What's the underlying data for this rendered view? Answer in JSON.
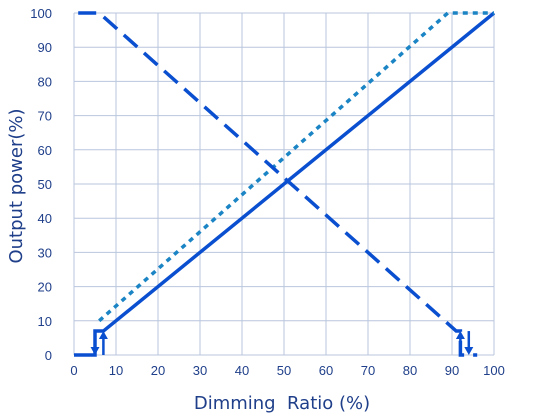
{
  "chart_data": {
    "type": "line",
    "title": "",
    "xlabel": "Dimming  Ratio (%)",
    "ylabel": "Output power(%)",
    "xlim": [
      0,
      100
    ],
    "ylim": [
      0,
      100
    ],
    "xticks": [
      0,
      10,
      20,
      30,
      40,
      50,
      60,
      70,
      80,
      90,
      100
    ],
    "yticks": [
      0,
      10,
      20,
      30,
      40,
      50,
      60,
      70,
      80,
      90,
      100
    ],
    "grid": true,
    "legend": "none",
    "colors": {
      "axis_text": "#1f3f8a",
      "grid": "#b9c6dd",
      "line": "#0a4fd0",
      "dotted": "#1a84c4"
    },
    "series": [
      {
        "style": "solid",
        "x": [
          0,
          5,
          5,
          7,
          100
        ],
        "y": [
          0,
          0,
          7,
          7,
          100
        ]
      },
      {
        "style": "dotted",
        "x": [
          6,
          89,
          97,
          100
        ],
        "y": [
          10,
          100,
          100,
          100
        ]
      },
      {
        "style": "dashed",
        "x": [
          1,
          6,
          91,
          92,
          92,
          96
        ],
        "y": [
          100,
          100,
          7,
          7,
          0,
          0
        ]
      }
    ],
    "hysteresis_arrows": [
      {
        "x": 5,
        "y_from": 7,
        "y_to": 0,
        "direction": "down"
      },
      {
        "x": 7,
        "y_from": 0,
        "y_to": 7,
        "direction": "up"
      },
      {
        "x": 92,
        "y_from": 0,
        "y_to": 7,
        "direction": "up"
      },
      {
        "x": 94,
        "y_from": 7,
        "y_to": 0,
        "direction": "down"
      }
    ]
  }
}
